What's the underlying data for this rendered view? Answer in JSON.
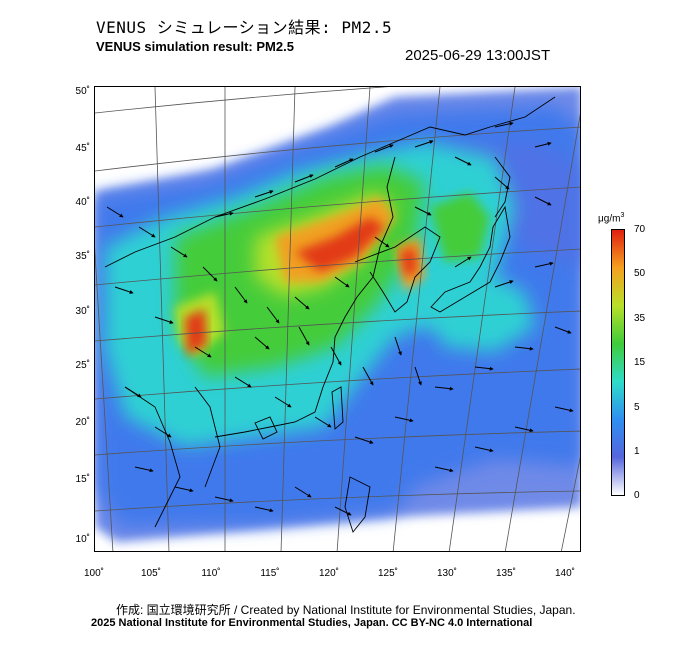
{
  "header": {
    "title_ja": "VENUS シミュレーション結果: PM2.5",
    "title_en": "VENUS simulation result: PM2.5",
    "timestamp": "2025-06-29 13:00JST"
  },
  "map": {
    "lat_labels": [
      "50˚",
      "45˚",
      "40˚",
      "35˚",
      "30˚",
      "25˚",
      "20˚",
      "15˚",
      "10˚"
    ],
    "lon_labels": [
      "100˚",
      "105˚",
      "110˚",
      "115˚",
      "120˚",
      "125˚",
      "130˚",
      "135˚",
      "140˚"
    ],
    "lat_range": [
      10,
      50
    ],
    "lon_range": [
      100,
      140
    ],
    "layers": [
      "PM2.5 concentration field",
      "wind vectors",
      "coastlines",
      "graticule"
    ]
  },
  "colorbar": {
    "unit": "μg/m",
    "unit_sup": "3",
    "ticks": [
      "70",
      "50",
      "35",
      "15",
      "5",
      "1",
      "0"
    ],
    "colors": [
      "#ffffff",
      "#5566dd",
      "#2f8ff0",
      "#2fdcc8",
      "#3fcc3a",
      "#b8e02a",
      "#f5a020",
      "#e02010"
    ]
  },
  "footer": {
    "credit": "作成: 国立環境研究所 / Created by National Institute for Environmental Studies, Japan.",
    "copyright": "2025 National Institute for Environmental Studies, Japan. CC BY-NC 4.0 International"
  }
}
